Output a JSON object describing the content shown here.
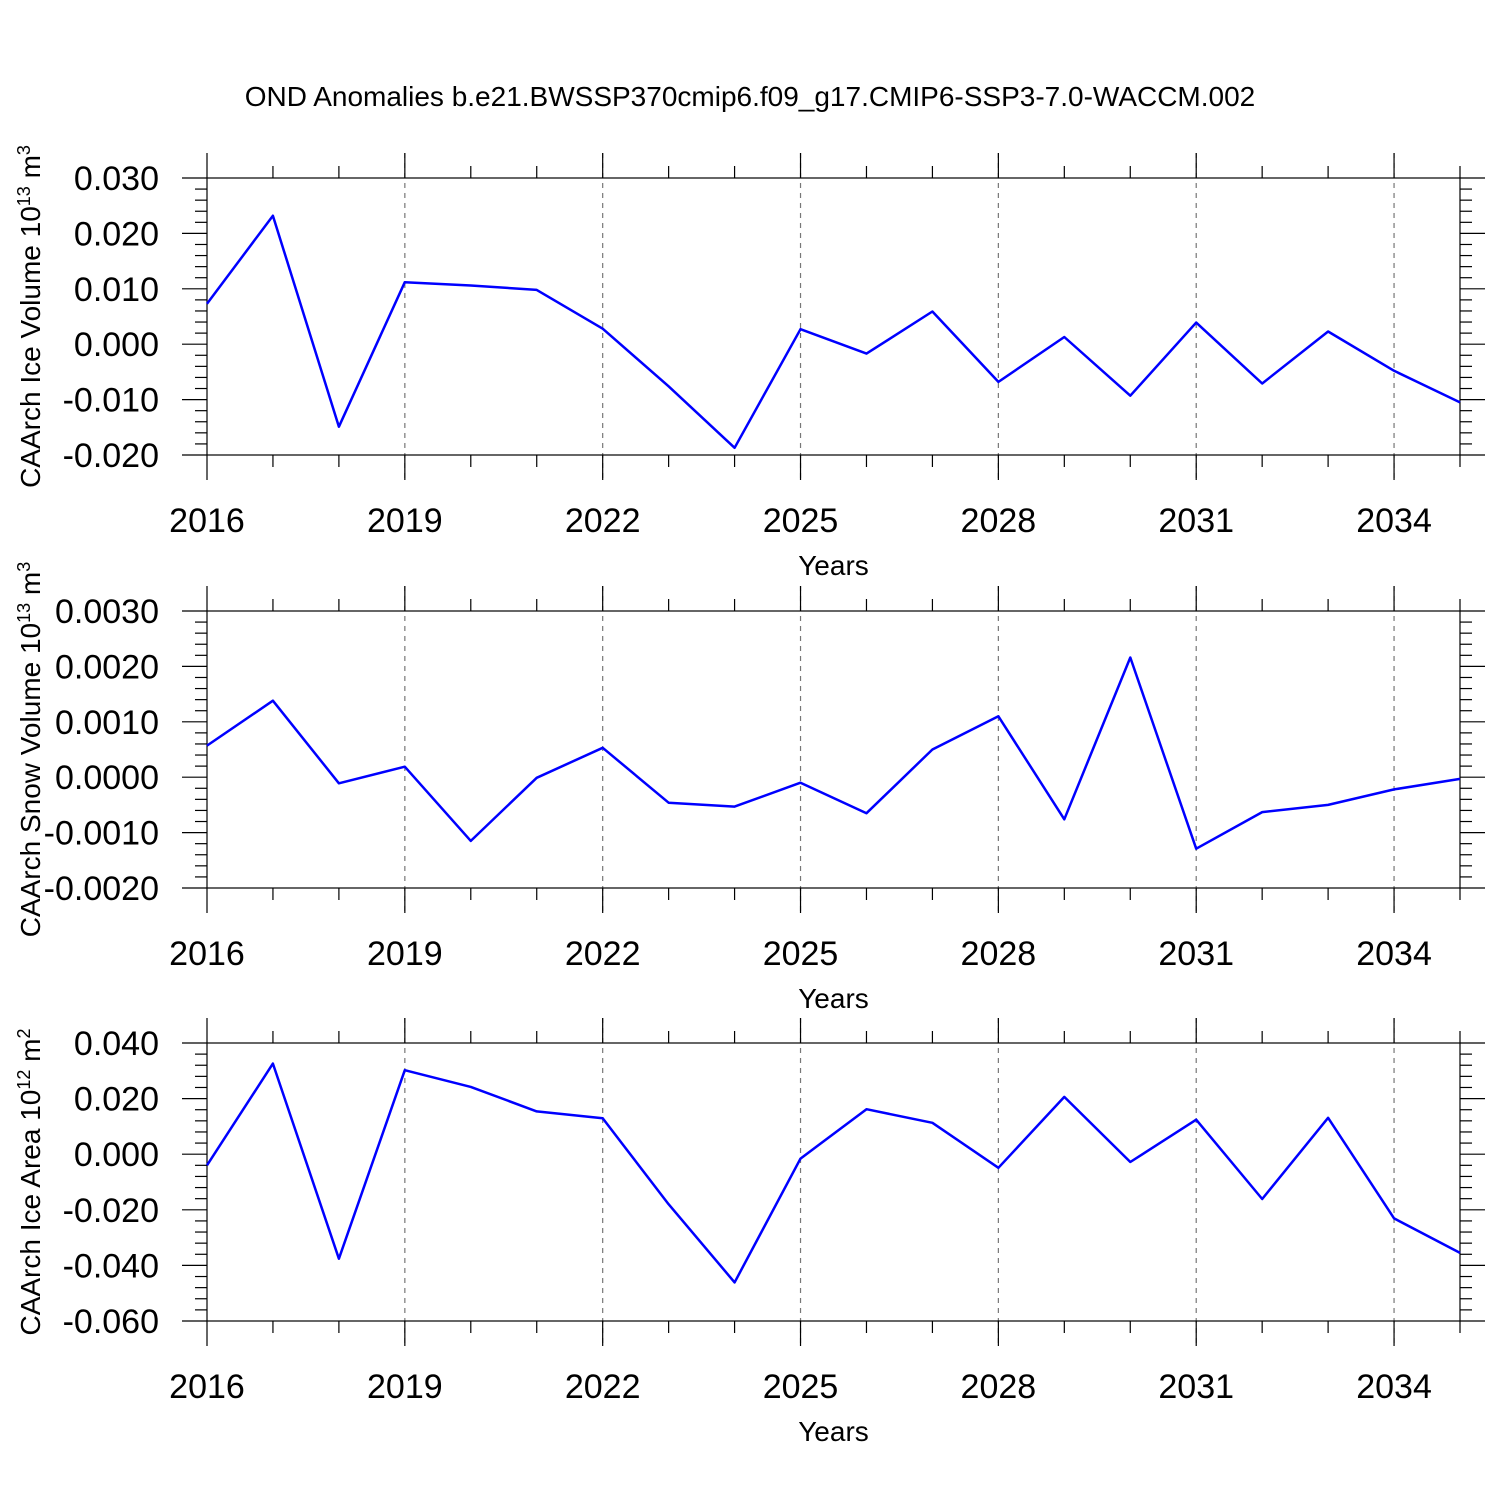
{
  "title": "OND Anomalies b.e21.BWSSP370cmip6.f09_g17.CMIP6-SSP3-7.0-WACCM.002",
  "colors": {
    "line": "#0000ff",
    "axis": "#000000",
    "grid": "#777777"
  },
  "chart_data": [
    {
      "type": "line",
      "xlabel": "Years",
      "ylabel": {
        "main": "CAArch Ice Volume 10",
        "exp": "13",
        "unit": " m",
        "unit_exp": "3"
      },
      "x": [
        2016,
        2017,
        2018,
        2019,
        2020,
        2021,
        2022,
        2023,
        2024,
        2025,
        2026,
        2027,
        2028,
        2029,
        2030,
        2031,
        2032,
        2033,
        2034,
        2035
      ],
      "values": [
        0.0073,
        0.0232,
        -0.0149,
        0.0112,
        0.0106,
        0.0098,
        0.0028,
        -0.0076,
        -0.0187,
        0.0027,
        -0.0017,
        0.0059,
        -0.0068,
        0.0013,
        -0.0093,
        0.0039,
        -0.0071,
        0.0023,
        -0.0048,
        -0.0105
      ],
      "xlim": [
        2016,
        2035
      ],
      "ylim": [
        -0.02,
        0.03
      ],
      "yticks": [
        -0.02,
        -0.01,
        0.0,
        0.01,
        0.02,
        0.03
      ],
      "ytick_labels": [
        "-0.020",
        "-0.010",
        "0.000",
        "0.010",
        "0.020",
        "0.030"
      ],
      "xticks": [
        2016,
        2019,
        2022,
        2025,
        2028,
        2031,
        2034
      ],
      "xtick_labels": [
        "2016",
        "2019",
        "2022",
        "2025",
        "2028",
        "2031",
        "2034"
      ],
      "grid": "vertical-dashed"
    },
    {
      "type": "line",
      "xlabel": "Years",
      "ylabel": {
        "main": "CAArch Snow Volume 10",
        "exp": "13",
        "unit": " m",
        "unit_exp": "3"
      },
      "x": [
        2016,
        2017,
        2018,
        2019,
        2020,
        2021,
        2022,
        2023,
        2024,
        2025,
        2026,
        2027,
        2028,
        2029,
        2030,
        2031,
        2032,
        2033,
        2034,
        2035
      ],
      "values": [
        0.00057,
        0.00138,
        -0.00011,
        0.00019,
        -0.00115,
        -1e-05,
        0.00053,
        -0.00046,
        -0.00053,
        -0.0001,
        -0.00065,
        0.0005,
        0.0011,
        -0.00076,
        0.00216,
        -0.00129,
        -0.00063,
        -0.0005,
        -0.00022,
        -3e-05
      ],
      "xlim": [
        2016,
        2035
      ],
      "ylim": [
        -0.002,
        0.003
      ],
      "yticks": [
        -0.002,
        -0.001,
        0.0,
        0.001,
        0.002,
        0.003
      ],
      "ytick_labels": [
        "-0.0020",
        "-0.0010",
        "0.0000",
        "0.0010",
        "0.0020",
        "0.0030"
      ],
      "xticks": [
        2016,
        2019,
        2022,
        2025,
        2028,
        2031,
        2034
      ],
      "xtick_labels": [
        "2016",
        "2019",
        "2022",
        "2025",
        "2028",
        "2031",
        "2034"
      ],
      "grid": "vertical-dashed"
    },
    {
      "type": "line",
      "xlabel": "Years",
      "ylabel": {
        "main": "CAArch Ice Area 10",
        "exp": "12",
        "unit": " m",
        "unit_exp": "2"
      },
      "x": [
        2016,
        2017,
        2018,
        2019,
        2020,
        2021,
        2022,
        2023,
        2024,
        2025,
        2026,
        2027,
        2028,
        2029,
        2030,
        2031,
        2032,
        2033,
        2034,
        2035
      ],
      "values": [
        -0.004,
        0.0326,
        -0.0376,
        0.0302,
        0.0242,
        0.0154,
        0.0129,
        -0.018,
        -0.0461,
        -0.0016,
        0.0162,
        0.0113,
        -0.0049,
        0.0206,
        -0.0028,
        0.0124,
        -0.0161,
        0.0131,
        -0.0231,
        -0.0355
      ],
      "xlim": [
        2016,
        2035
      ],
      "ylim": [
        -0.06,
        0.04
      ],
      "yticks": [
        -0.06,
        -0.04,
        -0.02,
        0.0,
        0.02,
        0.04
      ],
      "ytick_labels": [
        "-0.060",
        "-0.040",
        "-0.020",
        "0.000",
        "0.020",
        "0.040"
      ],
      "xticks": [
        2016,
        2019,
        2022,
        2025,
        2028,
        2031,
        2034
      ],
      "xtick_labels": [
        "2016",
        "2019",
        "2022",
        "2025",
        "2028",
        "2031",
        "2034"
      ],
      "grid": "vertical-dashed"
    }
  ]
}
